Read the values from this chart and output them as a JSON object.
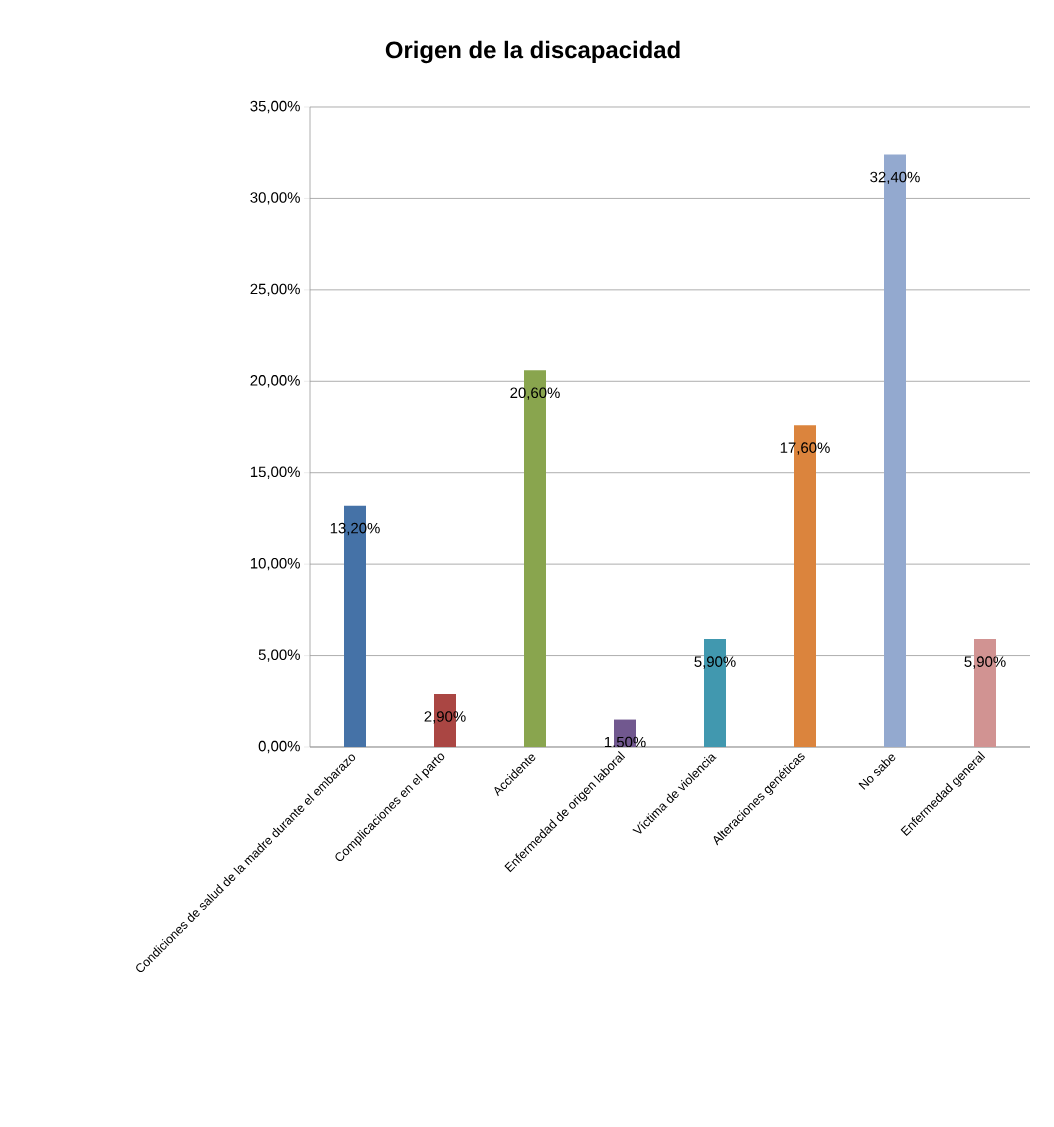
{
  "chart_data": {
    "type": "bar",
    "title": "Origen de la discapacidad",
    "categories": [
      "Condiciones de salud de la madre durante el embarazo",
      "Complicaciones en el parto",
      "Accidente",
      "Enfermedad de origen laboral",
      "Víctima de violencia",
      "Alteraciones genéticas",
      "No sabe",
      "Enfermedad general"
    ],
    "values": [
      13.2,
      2.9,
      20.6,
      1.5,
      5.9,
      17.6,
      32.4,
      5.9
    ],
    "colors": [
      "#4572a7",
      "#aa4643",
      "#89a54e",
      "#71588f",
      "#4198af",
      "#db843d",
      "#93a9cf",
      "#d19392"
    ],
    "value_labels": [
      "13,20%",
      "2,90%",
      "20,60%",
      "1,50%",
      "5,90%",
      "17,60%",
      "32,40%",
      "5,90%"
    ],
    "ylim": [
      0,
      35
    ],
    "yticks": [
      {
        "value": 0,
        "label": "0,00%"
      },
      {
        "value": 5,
        "label": "5,00%"
      },
      {
        "value": 10,
        "label": "10,00%"
      },
      {
        "value": 15,
        "label": "15,00%"
      },
      {
        "value": 20,
        "label": "20,00%"
      },
      {
        "value": 25,
        "label": "25,00%"
      },
      {
        "value": 30,
        "label": "30,00%"
      },
      {
        "value": 35,
        "label": "35,00%"
      }
    ],
    "grid": "y"
  }
}
